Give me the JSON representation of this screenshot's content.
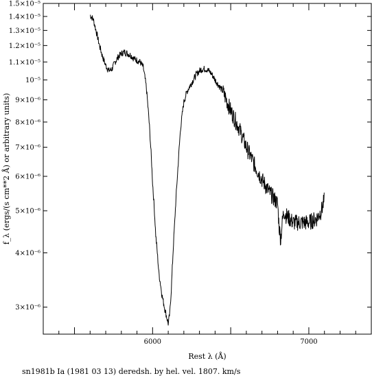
{
  "chart_data": {
    "type": "line",
    "title": "",
    "caption": "sn1981b Ia (1981 03 13) deredsh. by hel. vel.  1807. km/s",
    "xlabel": "Rest λ (Å)",
    "ylabel": "f_λ (ergs/(s cm**2 Å) or arbitrary units)",
    "xlim": [
      5300,
      7400
    ],
    "ylim": [
      2.6e-06,
      1.5e-05
    ],
    "yscale": "log",
    "x_ticks": [
      {
        "value": 6000,
        "label": "6000"
      },
      {
        "value": 7000,
        "label": "7000"
      }
    ],
    "y_ticks": [
      {
        "value": 3e-06,
        "label": "3×10⁻⁶"
      },
      {
        "value": 4e-06,
        "label": "4×10⁻⁶"
      },
      {
        "value": 5e-06,
        "label": "5×10⁻⁶"
      },
      {
        "value": 6e-06,
        "label": "6×10⁻⁶"
      },
      {
        "value": 7e-06,
        "label": "7×10⁻⁶"
      },
      {
        "value": 8e-06,
        "label": "8×10⁻⁶"
      },
      {
        "value": 9e-06,
        "label": "9×10⁻⁶"
      },
      {
        "value": 1e-05,
        "label": "10⁻⁵"
      },
      {
        "value": 1.1e-05,
        "label": "1.1×10⁻⁵"
      },
      {
        "value": 1.2e-05,
        "label": "1.2×10⁻⁵"
      },
      {
        "value": 1.3e-05,
        "label": "1.3×10⁻⁵"
      },
      {
        "value": 1.4e-05,
        "label": "1.4×10⁻⁵"
      },
      {
        "value": 1.5e-05,
        "label": "1.5×10⁻⁵"
      }
    ],
    "series": [
      {
        "x": [
          5600,
          5620,
          5640,
          5660,
          5680,
          5700,
          5720,
          5740,
          5760,
          5780,
          5800,
          5820,
          5840,
          5860,
          5880,
          5900,
          5920,
          5940,
          5960,
          5980,
          6000,
          6020,
          6040,
          6060,
          6080,
          6090,
          6100,
          6110,
          6120,
          6140,
          6160,
          6180,
          6200,
          6220,
          6240,
          6260,
          6280,
          6300,
          6320,
          6340,
          6360,
          6380,
          6400,
          6450,
          6500,
          6550,
          6600,
          6650,
          6700,
          6750,
          6800,
          6810,
          6820,
          6830,
          6840,
          6850,
          6900,
          6950,
          7000,
          7050,
          7080,
          7100
        ],
        "y": [
          1.41e-05,
          1.38e-05,
          1.29e-05,
          1.2e-05,
          1.13e-05,
          1.08e-05,
          1.05e-05,
          1.06e-05,
          1.1e-05,
          1.13e-05,
          1.15e-05,
          1.16e-05,
          1.15e-05,
          1.14e-05,
          1.12e-05,
          1.11e-05,
          1.1e-05,
          1.07e-05,
          9.6e-06,
          7.8e-06,
          5.8e-06,
          4.4e-06,
          3.6e-06,
          3.2e-06,
          2.95e-06,
          2.85e-06,
          2.75e-06,
          2.9e-06,
          3.3e-06,
          4.6e-06,
          6.1e-06,
          7.8e-06,
          8.9e-06,
          9.4e-06,
          9.7e-06,
          1e-05,
          1.03e-05,
          1.05e-05,
          1.06e-05,
          1.06e-05,
          1.05e-05,
          1.03e-05,
          1e-05,
          9.4e-06,
          8.5e-06,
          7.8e-06,
          7e-06,
          6.4e-06,
          5.9e-06,
          5.5e-06,
          5.2e-06,
          4.6e-06,
          4.3e-06,
          4.7e-06,
          5e-06,
          4.9e-06,
          4.7e-06,
          4.7e-06,
          4.7e-06,
          4.8e-06,
          5e-06,
          5.3e-06
        ]
      }
    ],
    "grid": false,
    "legend": "none"
  }
}
